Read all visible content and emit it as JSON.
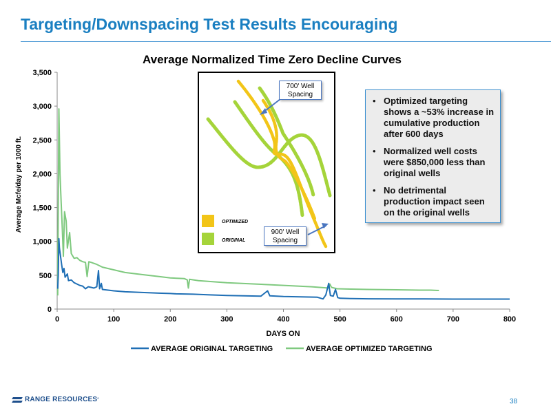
{
  "slide": {
    "title": "Targeting/Downspacing Test Results Encouraging",
    "page_number": "38",
    "logo_text": "RANGE RESOURCES",
    "logo_mark": "°"
  },
  "colors": {
    "title_blue": "#1a7fc1",
    "original": "#1f6fb5",
    "optimized": "#7fc97f",
    "inset_optimized": "#f2c518",
    "inset_original": "#a5d43a"
  },
  "chart_data": {
    "type": "line",
    "title": "Average Normalized Time Zero Decline Curves",
    "xlabel": "DAYS ON",
    "ylabel": "Average Mcfe/day per 1000 ft.",
    "xlim": [
      0,
      800
    ],
    "ylim": [
      0,
      3500
    ],
    "x_ticks": [
      0,
      100,
      200,
      300,
      400,
      500,
      600,
      700,
      800
    ],
    "y_ticks": [
      0,
      500,
      1000,
      1500,
      2000,
      2500,
      3000,
      3500
    ],
    "x_tick_labels": [
      "0",
      "100",
      "200",
      "300",
      "400",
      "500",
      "600",
      "700",
      "800"
    ],
    "y_tick_labels": [
      "0",
      "500",
      "1,000",
      "1,500",
      "2,000",
      "2,500",
      "3,000",
      "3,500"
    ],
    "grid": false,
    "legend_position": "bottom",
    "series": [
      {
        "name": "AVERAGE ORIGINAL TARGETING",
        "color": "#1f6fb5",
        "points": [
          [
            1,
            300
          ],
          [
            2,
            500
          ],
          [
            3,
            1040
          ],
          [
            4,
            900
          ],
          [
            6,
            780
          ],
          [
            8,
            650
          ],
          [
            10,
            540
          ],
          [
            12,
            600
          ],
          [
            14,
            470
          ],
          [
            18,
            520
          ],
          [
            20,
            420
          ],
          [
            25,
            430
          ],
          [
            30,
            390
          ],
          [
            35,
            370
          ],
          [
            40,
            350
          ],
          [
            45,
            340
          ],
          [
            50,
            300
          ],
          [
            55,
            330
          ],
          [
            60,
            320
          ],
          [
            65,
            310
          ],
          [
            70,
            330
          ],
          [
            73,
            570
          ],
          [
            75,
            300
          ],
          [
            78,
            380
          ],
          [
            80,
            290
          ],
          [
            90,
            280
          ],
          [
            100,
            270
          ],
          [
            120,
            255
          ],
          [
            150,
            245
          ],
          [
            180,
            235
          ],
          [
            200,
            230
          ],
          [
            210,
            225
          ],
          [
            240,
            220
          ],
          [
            270,
            210
          ],
          [
            300,
            200
          ],
          [
            330,
            195
          ],
          [
            360,
            190
          ],
          [
            372,
            270
          ],
          [
            376,
            195
          ],
          [
            400,
            185
          ],
          [
            430,
            180
          ],
          [
            460,
            175
          ],
          [
            470,
            150
          ],
          [
            475,
            210
          ],
          [
            480,
            380
          ],
          [
            483,
            200
          ],
          [
            488,
            190
          ],
          [
            492,
            290
          ],
          [
            496,
            170
          ],
          [
            500,
            160
          ],
          [
            520,
            155
          ],
          [
            550,
            152
          ],
          [
            600,
            150
          ],
          [
            650,
            150
          ],
          [
            700,
            148
          ],
          [
            750,
            148
          ],
          [
            800,
            148
          ]
        ]
      },
      {
        "name": "AVERAGE OPTIMIZED TARGETING",
        "color": "#7fc97f",
        "points": [
          [
            1,
            200
          ],
          [
            2,
            1500
          ],
          [
            3,
            2960
          ],
          [
            5,
            2000
          ],
          [
            7,
            1600
          ],
          [
            9,
            1200
          ],
          [
            11,
            780
          ],
          [
            13,
            1440
          ],
          [
            16,
            1300
          ],
          [
            18,
            900
          ],
          [
            22,
            1130
          ],
          [
            25,
            820
          ],
          [
            30,
            750
          ],
          [
            35,
            760
          ],
          [
            40,
            720
          ],
          [
            45,
            700
          ],
          [
            50,
            690
          ],
          [
            53,
            480
          ],
          [
            56,
            700
          ],
          [
            60,
            690
          ],
          [
            70,
            660
          ],
          [
            80,
            620
          ],
          [
            100,
            580
          ],
          [
            120,
            540
          ],
          [
            150,
            510
          ],
          [
            180,
            480
          ],
          [
            200,
            460
          ],
          [
            225,
            450
          ],
          [
            230,
            430
          ],
          [
            232,
            310
          ],
          [
            234,
            440
          ],
          [
            250,
            420
          ],
          [
            300,
            390
          ],
          [
            350,
            370
          ],
          [
            400,
            350
          ],
          [
            450,
            330
          ],
          [
            480,
            310
          ],
          [
            482,
            370
          ],
          [
            485,
            320
          ],
          [
            495,
            300
          ],
          [
            520,
            295
          ],
          [
            550,
            290
          ],
          [
            600,
            285
          ],
          [
            640,
            280
          ],
          [
            660,
            280
          ],
          [
            675,
            275
          ]
        ]
      }
    ]
  },
  "inset": {
    "legend_optimized": "OPTIMIZED",
    "legend_original": "ORIGINAL",
    "callout_700": "700' Well Spacing",
    "callout_900": "900' Well Spacing"
  },
  "bullets": [
    "Optimized targeting shows a ~53% increase in cumulative production after 600 days",
    "Normalized well costs were $850,000 less than original wells",
    "No detrimental production impact seen on the original wells"
  ]
}
